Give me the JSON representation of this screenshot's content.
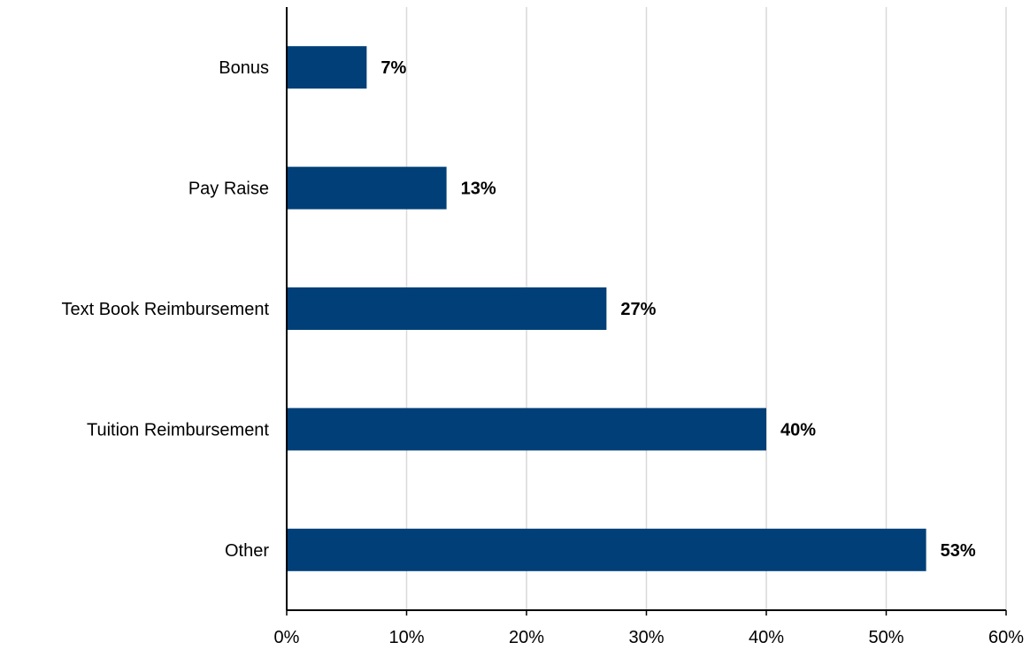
{
  "chart_data": {
    "type": "bar",
    "orientation": "horizontal",
    "categories": [
      "Bonus",
      "Pay Raise",
      "Text Book Reimbursement",
      "Tuition Reimbursement",
      "Other"
    ],
    "values": [
      6.67,
      13.33,
      26.67,
      40.0,
      53.33
    ],
    "value_labels": [
      "7%",
      "13%",
      "27%",
      "40%",
      "53%"
    ],
    "x_ticks": [
      "0%",
      "10%",
      "20%",
      "30%",
      "40%",
      "50%",
      "60%"
    ],
    "xlim": [
      0,
      60
    ],
    "grid": "vertical",
    "bar_color": "#003F78",
    "grid_color": "#D9D9D9"
  }
}
